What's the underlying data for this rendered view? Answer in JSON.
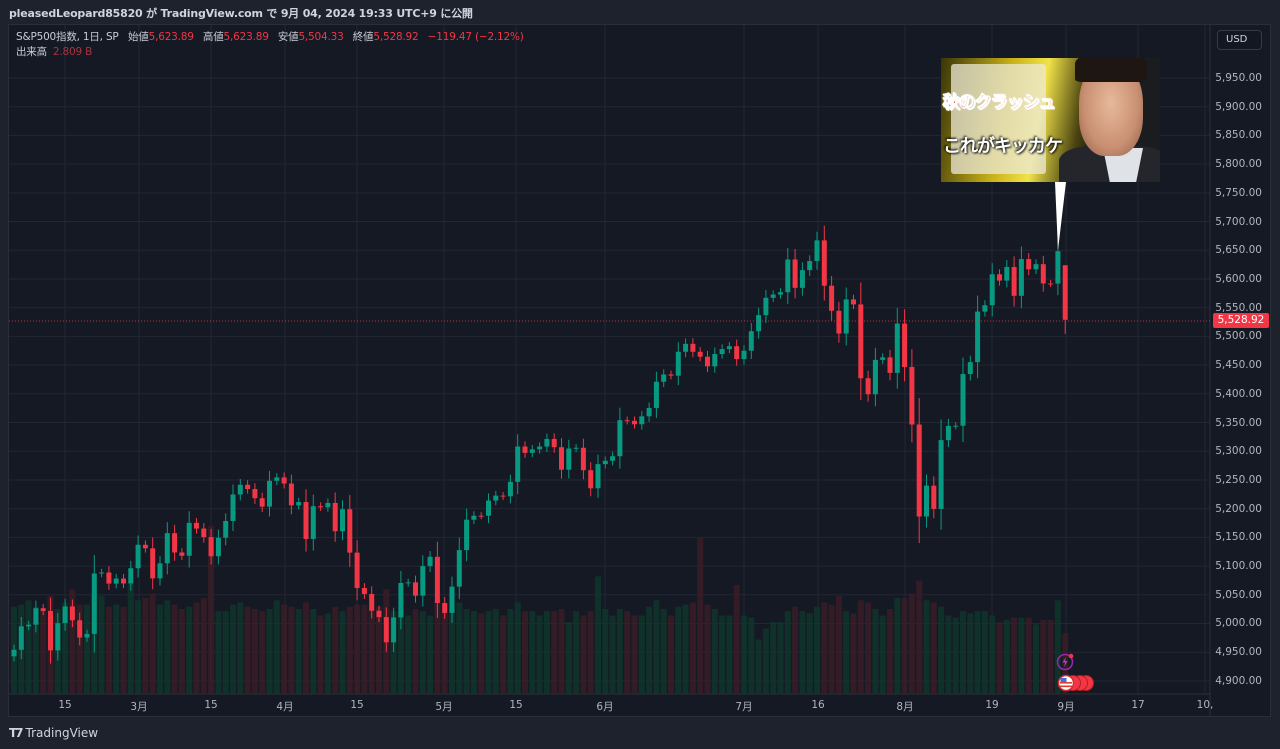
{
  "header": {
    "publish_line": "pleasedLeopard85820 が TradingView.com で 9月 04, 2024 19:33 UTC+9 に公開"
  },
  "legend": {
    "symbol": "S&P500指数, 1日, SP",
    "open_label": "始値",
    "open": "5,623.89",
    "high_label": "高値",
    "high": "5,623.89",
    "low_label": "安値",
    "low": "5,504.33",
    "close_label": "終値",
    "close": "5,528.92",
    "change": "−119.47 (−2.12%)",
    "volume_label": "出来高",
    "volume": "2.809 B"
  },
  "currency_button": "USD",
  "last_price_label": "5,528.92",
  "thumbnail": {
    "line1": "秋のクラッシュ",
    "line2": "これがキッカケ"
  },
  "footer": {
    "logo_text": "TradingView"
  },
  "colors": {
    "up": "#089981",
    "down": "#f23645",
    "background": "#151924",
    "grid": "#232734"
  },
  "icons": [
    "lightning-event-icon",
    "us-flag-event-icon"
  ],
  "chart_data": {
    "type": "candlestick",
    "symbol": "S&P500指数",
    "interval": "1日",
    "y_axis": {
      "ticks": [
        "4,900.00",
        "4,950.00",
        "5,000.00",
        "5,050.00",
        "5,100.00",
        "5,150.00",
        "5,200.00",
        "5,250.00",
        "5,300.00",
        "5,350.00",
        "5,400.00",
        "5,450.00",
        "5,500.00",
        "5,550.00",
        "5,600.00",
        "5,650.00",
        "5,700.00",
        "5,750.00",
        "5,800.00",
        "5,850.00",
        "5,900.00",
        "5,950.00"
      ],
      "range": [
        4880,
        5990
      ]
    },
    "x_axis": {
      "ticks": [
        "15",
        "3月",
        "15",
        "4月",
        "15",
        "5月",
        "15",
        "6月",
        "7月",
        "16",
        "8月",
        "19",
        "9月",
        "17",
        "10,"
      ]
    },
    "grid": true,
    "last_candle": {
      "date": "2024-09-03",
      "open": 5623.89,
      "high": 5623.89,
      "low": 5504.33,
      "close": 5528.92,
      "volume_b": 2.809
    },
    "first_prev_close": 4942.81,
    "dates": [
      "02-06",
      "02-07",
      "02-08",
      "02-09",
      "02-12",
      "02-13",
      "02-14",
      "02-15",
      "02-16",
      "02-20",
      "02-21",
      "02-22",
      "02-23",
      "02-26",
      "02-27",
      "02-28",
      "02-29",
      "03-01",
      "03-04",
      "03-05",
      "03-06",
      "03-07",
      "03-08",
      "03-11",
      "03-12",
      "03-13",
      "03-14",
      "03-15",
      "03-18",
      "03-19",
      "03-20",
      "03-21",
      "03-22",
      "03-25",
      "03-26",
      "03-27",
      "03-28",
      "04-01",
      "04-02",
      "04-03",
      "04-04",
      "04-05",
      "04-08",
      "04-09",
      "04-10",
      "04-11",
      "04-12",
      "04-15",
      "04-16",
      "04-17",
      "04-18",
      "04-19",
      "04-22",
      "04-23",
      "04-24",
      "04-25",
      "04-26",
      "04-29",
      "04-30",
      "05-01",
      "05-02",
      "05-03",
      "05-06",
      "05-07",
      "05-08",
      "05-09",
      "05-10",
      "05-13",
      "05-14",
      "05-15",
      "05-16",
      "05-17",
      "05-20",
      "05-21",
      "05-22",
      "05-23",
      "05-24",
      "05-28",
      "05-29",
      "05-30",
      "05-31",
      "06-03",
      "06-04",
      "06-05",
      "06-06",
      "06-07",
      "06-10",
      "06-11",
      "06-12",
      "06-13",
      "06-14",
      "06-17",
      "06-18",
      "06-20",
      "06-21",
      "06-24",
      "06-25",
      "06-26",
      "06-27",
      "06-28",
      "07-01",
      "07-02",
      "07-03",
      "07-05",
      "07-08",
      "07-09",
      "07-10",
      "07-11",
      "07-12",
      "07-15",
      "07-16",
      "07-17",
      "07-18",
      "07-19",
      "07-22",
      "07-23",
      "07-24",
      "07-25",
      "07-26",
      "07-29",
      "07-30",
      "07-31",
      "08-01",
      "08-02",
      "08-05",
      "08-06",
      "08-07",
      "08-08",
      "08-09",
      "08-12",
      "08-13",
      "08-14",
      "08-15",
      "08-16",
      "08-19",
      "08-20",
      "08-21",
      "08-22",
      "08-23",
      "08-26",
      "08-27",
      "08-28",
      "08-29",
      "08-30",
      "09-03"
    ],
    "close": [
      4954.23,
      4995.06,
      4997.91,
      5026.61,
      5021.84,
      4953.17,
      5000.62,
      5029.73,
      5005.57,
      4975.51,
      4981.8,
      5087.03,
      5088.8,
      5069.53,
      5078.18,
      5069.76,
      5096.27,
      5137.08,
      5130.95,
      5078.65,
      5104.76,
      5157.36,
      5123.69,
      5117.94,
      5175.27,
      5165.31,
      5150.48,
      5117.09,
      5149.42,
      5178.51,
      5224.62,
      5241.53,
      5234.18,
      5218.19,
      5203.58,
      5248.49,
      5254.35,
      5243.77,
      5205.81,
      5211.49,
      5147.21,
      5204.34,
      5202.39,
      5209.91,
      5160.64,
      5199.06,
      5123.41,
      5061.82,
      5051.41,
      5022.21,
      5011.12,
      4967.23,
      5010.6,
      5070.55,
      5071.63,
      5048.42,
      5099.96,
      5116.17,
      5035.69,
      5018.39,
      5064.2,
      5127.79,
      5180.74,
      5187.7,
      5187.67,
      5214.08,
      5222.68,
      5221.42,
      5246.68,
      5308.15,
      5297.1,
      5303.27,
      5308.13,
      5321.41,
      5307.01,
      5267.84,
      5304.72,
      5306.04,
      5266.95,
      5235.48,
      5277.51,
      5283.4,
      5291.34,
      5354.03,
      5352.96,
      5346.99,
      5360.79,
      5375.32,
      5421.03,
      5433.74,
      5431.6,
      5473.23,
      5487.03,
      5473.17,
      5464.62,
      5447.87,
      5469.3,
      5477.9,
      5482.87,
      5460.48,
      5475.09,
      5509.01,
      5537.02,
      5567.19,
      5572.85,
      5576.98,
      5633.91,
      5584.54,
      5615.35,
      5631.22,
      5667.2,
      5588.27,
      5544.59,
      5505.0,
      5564.41,
      5555.74,
      5427.13,
      5399.22,
      5459.1,
      5463.54,
      5436.44,
      5522.3,
      5446.68,
      5346.56,
      5186.33,
      5240.03,
      5199.5,
      5319.31,
      5344.16,
      5344.39,
      5434.43,
      5455.21,
      5543.22,
      5554.25,
      5608.25,
      5597.12,
      5620.85,
      5570.64,
      5634.61,
      5616.84,
      5625.8,
      5592.18,
      5591.96,
      5648.4,
      5528.92
    ],
    "volume_b": [
      4.0,
      4.1,
      4.3,
      4.0,
      3.9,
      4.5,
      3.9,
      4.2,
      4.8,
      4.1,
      4.1,
      4.6,
      4.5,
      4.0,
      4.1,
      4.0,
      5.2,
      4.3,
      4.4,
      4.6,
      4.1,
      4.3,
      4.1,
      3.9,
      4.0,
      4.2,
      4.4,
      7.7,
      3.8,
      3.8,
      4.1,
      4.2,
      4.0,
      3.9,
      3.8,
      3.9,
      4.3,
      4.1,
      4.0,
      3.9,
      4.2,
      3.9,
      3.6,
      3.7,
      4.0,
      3.8,
      4.0,
      4.1,
      4.1,
      4.0,
      4.0,
      4.8,
      3.8,
      3.8,
      3.6,
      3.9,
      3.8,
      3.6,
      4.3,
      4.1,
      3.9,
      4.2,
      3.9,
      3.8,
      3.7,
      3.8,
      3.9,
      3.6,
      3.9,
      4.2,
      3.8,
      3.8,
      3.6,
      3.8,
      3.8,
      3.9,
      3.3,
      3.8,
      3.6,
      3.8,
      5.4,
      3.9,
      3.6,
      3.9,
      3.8,
      3.6,
      3.6,
      4.0,
      4.3,
      3.9,
      3.6,
      4.0,
      4.1,
      4.2,
      7.2,
      4.1,
      3.9,
      3.6,
      3.6,
      5.0,
      3.6,
      3.5,
      2.5,
      3.0,
      3.3,
      3.3,
      3.8,
      4.0,
      3.8,
      3.7,
      4.0,
      4.2,
      4.1,
      4.5,
      3.8,
      3.7,
      4.3,
      4.2,
      3.9,
      3.6,
      3.9,
      4.4,
      4.4,
      4.6,
      5.2,
      4.3,
      4.2,
      4.0,
      3.6,
      3.5,
      3.8,
      3.7,
      3.8,
      3.8,
      3.6,
      3.3,
      3.4,
      3.5,
      3.5,
      3.5,
      3.2,
      3.4,
      3.4,
      4.3,
      2.8
    ]
  }
}
